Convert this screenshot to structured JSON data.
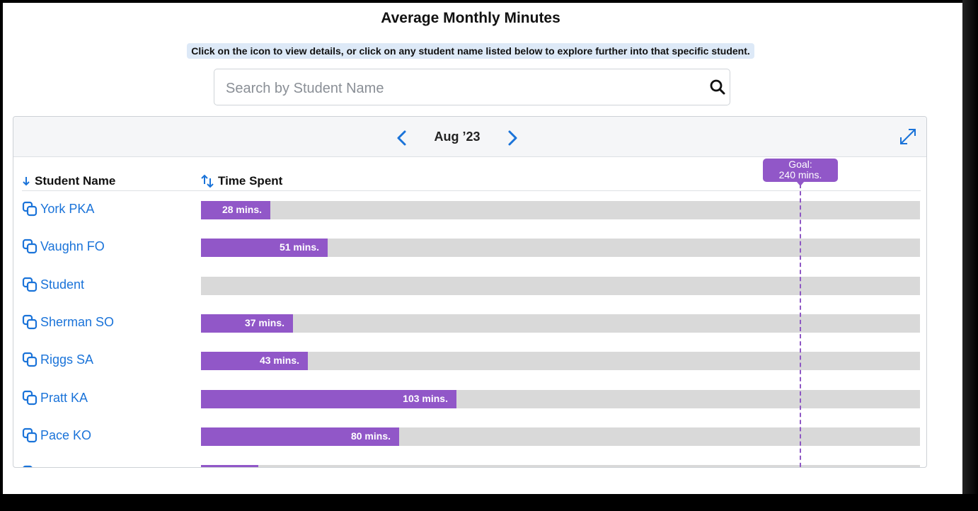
{
  "page": {
    "title": "Average Monthly Minutes",
    "hint": "Click on the icon to view details, or click on any student name listed below to explore further into that specific student."
  },
  "search": {
    "placeholder": "Search by Student Name",
    "value": "",
    "icon": "search-icon"
  },
  "panel": {
    "month": "Aug ’23",
    "prev_icon": "chevron-left-icon",
    "next_icon": "chevron-right-icon",
    "expand_icon": "expand-icon"
  },
  "table": {
    "columns": [
      {
        "label": "Student Name",
        "sort_icon": "sort-down-icon"
      },
      {
        "label": "Time Spent",
        "sort_icon": "sort-both-icon"
      }
    ],
    "goal": {
      "label": "Goal:",
      "value_label": "240 mins.",
      "minutes": 240
    },
    "scale_max_minutes": 290
  },
  "colors": {
    "accent": "#1a73d9",
    "bar": "#9157c8",
    "track": "#d9d9d9",
    "hint_bg": "#dde9f7"
  },
  "chart_data": {
    "type": "bar",
    "orientation": "horizontal",
    "categories": [
      "York PKA",
      "Vaughn FO",
      "Student",
      "Sherman SO",
      "Riggs SA",
      "Pratt KA",
      "Pace KO",
      ""
    ],
    "values": [
      28,
      51,
      0,
      37,
      43,
      103,
      80,
      23
    ],
    "data_labels": [
      "28 mins.",
      "51 mins.",
      "",
      "37 mins.",
      "43 mins.",
      "103 mins.",
      "80 mins.",
      ""
    ],
    "xlim": [
      0,
      290
    ],
    "reference_line": {
      "label": "Goal:",
      "value_label": "240 mins.",
      "value": 240
    }
  }
}
